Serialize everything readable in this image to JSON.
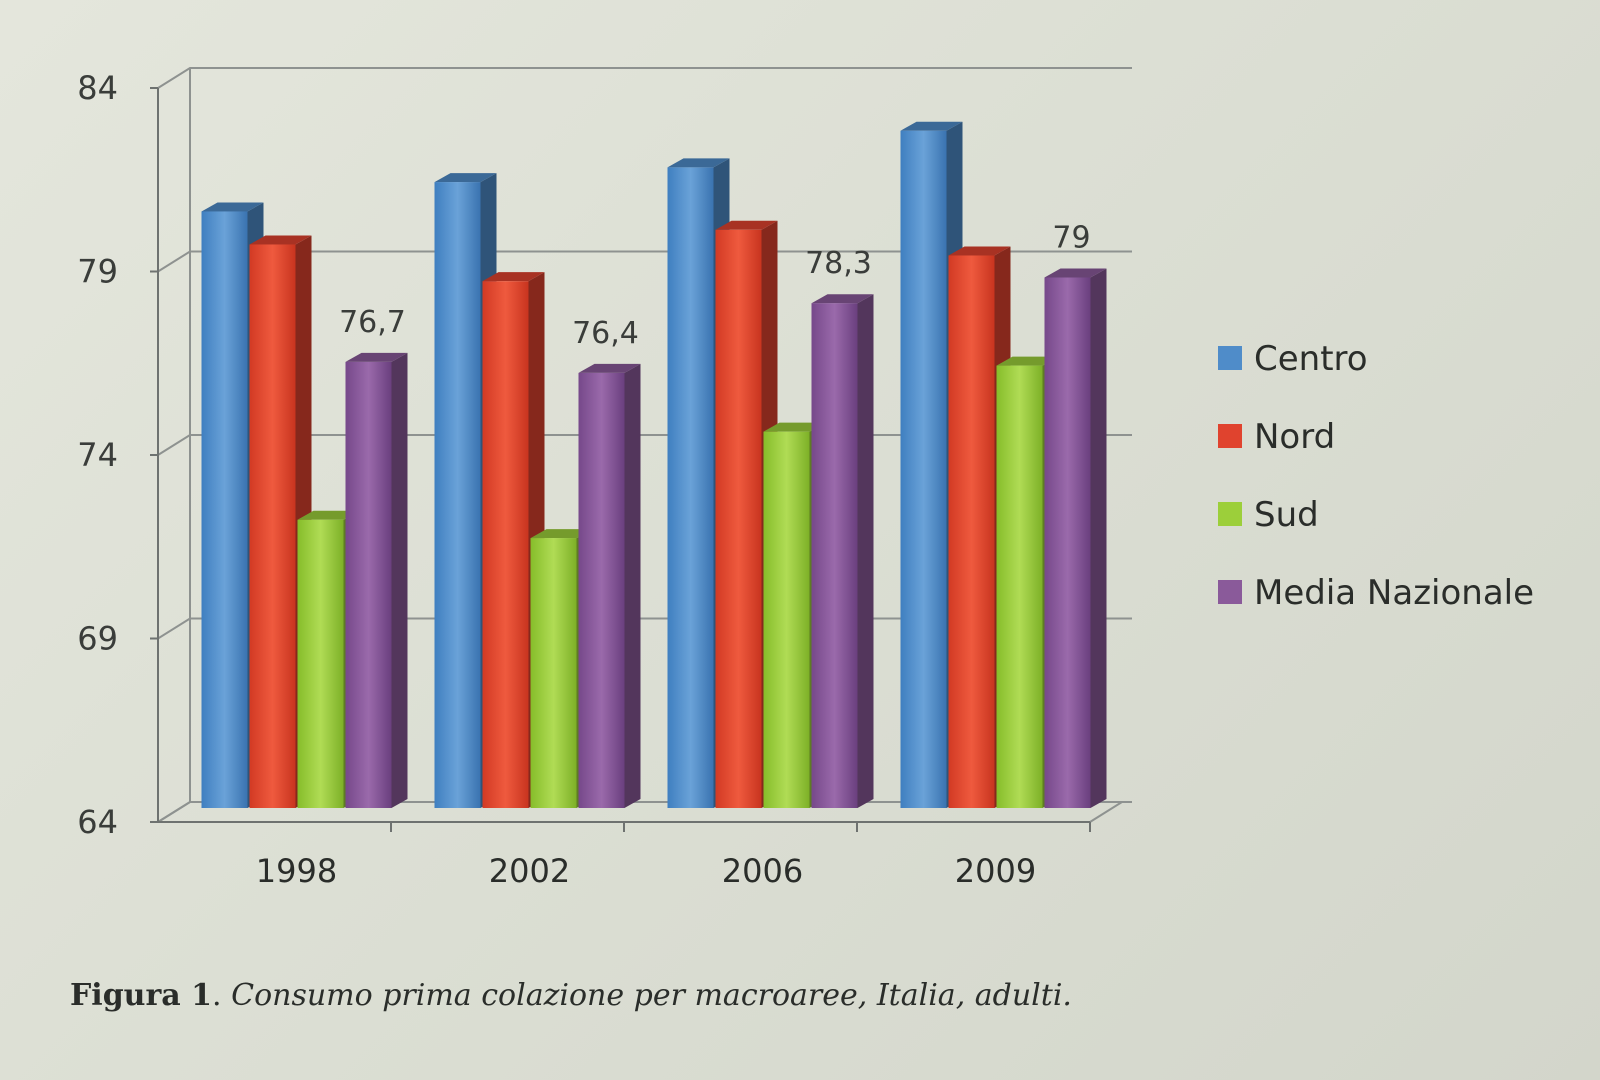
{
  "chart_data": {
    "type": "bar",
    "categories": [
      "1998",
      "2002",
      "2006",
      "2009"
    ],
    "series": [
      {
        "name": "Centro",
        "color": "#4f8cc9",
        "values": [
          80.8,
          81.6,
          82.0,
          83.0
        ]
      },
      {
        "name": "Nord",
        "color": "#e0432e",
        "values": [
          79.9,
          78.9,
          80.3,
          79.6
        ]
      },
      {
        "name": "Sud",
        "color": "#9ccf3a",
        "values": [
          72.4,
          71.9,
          74.8,
          76.6
        ]
      },
      {
        "name": "Media Nazionale",
        "color": "#8a5a9a",
        "values": [
          76.7,
          76.4,
          78.3,
          79.0
        ]
      }
    ],
    "data_labels": {
      "series": "Media Nazionale",
      "texts": [
        "76,7",
        "76,4",
        "78,3",
        "79"
      ]
    },
    "y_ticks": [
      "64",
      "69",
      "74",
      "79",
      "84"
    ],
    "ylim": [
      64,
      84
    ],
    "grid": true,
    "legend_position": "right",
    "style": "3d-clustered-columns"
  },
  "caption": {
    "figure_label": "Figura 1",
    "separator": ". ",
    "text": "Consumo prima colazione per macroaree, Italia, adulti."
  }
}
